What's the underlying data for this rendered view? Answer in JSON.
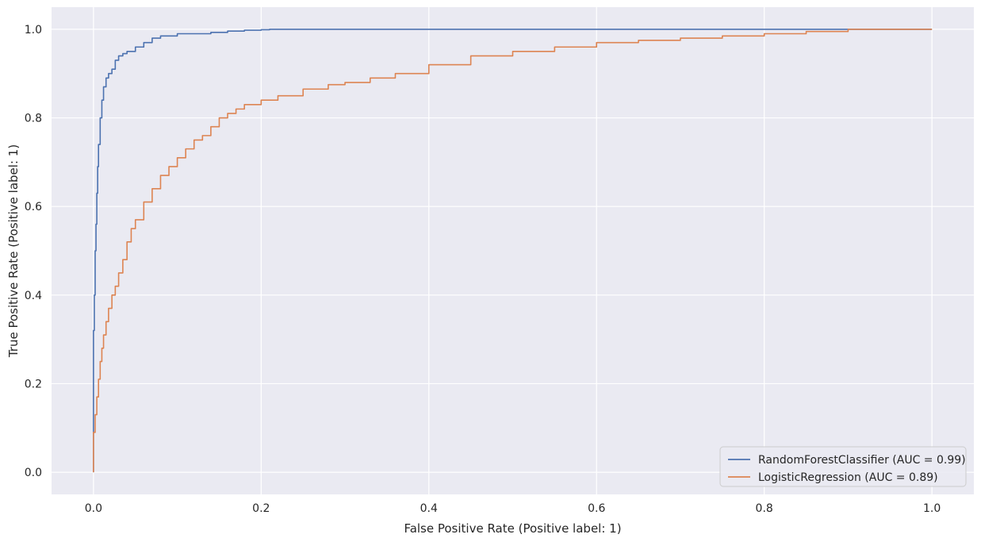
{
  "chart_data": {
    "type": "line",
    "title": "",
    "xlabel": "False Positive Rate (Positive label: 1)",
    "ylabel": "True Positive Rate (Positive label: 1)",
    "xlim": [
      -0.05,
      1.05
    ],
    "ylim": [
      -0.05,
      1.05
    ],
    "xticks": [
      "0.0",
      "0.2",
      "0.4",
      "0.6",
      "0.8",
      "1.0"
    ],
    "yticks": [
      "0.0",
      "0.2",
      "0.4",
      "0.6",
      "0.8",
      "1.0"
    ],
    "grid": true,
    "legend_position": "bottom-right",
    "background": "#eaeaf2",
    "series": [
      {
        "name": "RandomForestClassifier (AUC = 0.99)",
        "color": "#4c72b0",
        "x": [
          0.0,
          0.0,
          0.001,
          0.002,
          0.003,
          0.004,
          0.005,
          0.006,
          0.008,
          0.01,
          0.012,
          0.015,
          0.018,
          0.022,
          0.026,
          0.03,
          0.035,
          0.04,
          0.05,
          0.06,
          0.07,
          0.08,
          0.1,
          0.12,
          0.14,
          0.16,
          0.18,
          0.2,
          0.21,
          0.5,
          0.8,
          1.0
        ],
        "y": [
          0.0,
          0.32,
          0.4,
          0.5,
          0.56,
          0.63,
          0.69,
          0.74,
          0.8,
          0.84,
          0.87,
          0.89,
          0.9,
          0.91,
          0.93,
          0.94,
          0.945,
          0.95,
          0.96,
          0.97,
          0.98,
          0.985,
          0.99,
          0.99,
          0.993,
          0.996,
          0.998,
          0.999,
          1.0,
          1.0,
          1.0,
          1.0
        ]
      },
      {
        "name": "LogisticRegression (AUC = 0.89)",
        "color": "#dd8452",
        "x": [
          0.0,
          0.0,
          0.002,
          0.004,
          0.006,
          0.008,
          0.01,
          0.012,
          0.015,
          0.018,
          0.022,
          0.026,
          0.03,
          0.035,
          0.04,
          0.045,
          0.05,
          0.06,
          0.07,
          0.08,
          0.09,
          0.1,
          0.11,
          0.12,
          0.13,
          0.14,
          0.15,
          0.16,
          0.17,
          0.18,
          0.2,
          0.22,
          0.25,
          0.28,
          0.3,
          0.33,
          0.36,
          0.4,
          0.45,
          0.5,
          0.55,
          0.6,
          0.65,
          0.7,
          0.75,
          0.8,
          0.85,
          0.9,
          1.0
        ],
        "y": [
          0.0,
          0.09,
          0.13,
          0.17,
          0.21,
          0.25,
          0.28,
          0.31,
          0.34,
          0.37,
          0.4,
          0.42,
          0.45,
          0.48,
          0.52,
          0.55,
          0.57,
          0.61,
          0.64,
          0.67,
          0.69,
          0.71,
          0.73,
          0.75,
          0.76,
          0.78,
          0.8,
          0.81,
          0.82,
          0.83,
          0.84,
          0.85,
          0.865,
          0.875,
          0.88,
          0.89,
          0.9,
          0.92,
          0.94,
          0.95,
          0.96,
          0.97,
          0.975,
          0.98,
          0.985,
          0.99,
          0.995,
          1.0,
          1.0
        ]
      }
    ]
  }
}
